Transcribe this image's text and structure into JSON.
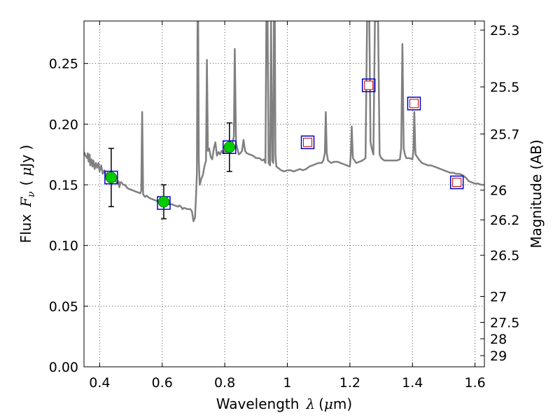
{
  "chart_data": {
    "type": "line",
    "xlabel_prefix": "Wavelength",
    "xlabel_symbol": "λ",
    "xlabel_unit_open": "(",
    "xlabel_unit_mu": "μ",
    "xlabel_unit_rest": "m)",
    "ylabel_prefix": "Flux",
    "ylabel_symbol": "F",
    "ylabel_sub": "ν",
    "ylabel_unit_open": "(",
    "ylabel_unit_mu": "μ",
    "ylabel_unit_rest": "Jy )",
    "y2label": "Magnitude (AB)",
    "xlim": [
      0.35,
      1.63
    ],
    "ylim": [
      0.0,
      0.285
    ],
    "x_ticks": [
      0.4,
      0.6,
      0.8,
      1.0,
      1.2,
      1.4,
      1.6
    ],
    "x_tick_labels": [
      "0.4",
      "0.6",
      "0.8",
      "1",
      "1.2",
      "1.4",
      "1.6"
    ],
    "y_ticks": [
      0.0,
      0.05,
      0.1,
      0.15,
      0.2,
      0.25
    ],
    "y_tick_labels": [
      "0.00",
      "0.05",
      "0.10",
      "0.15",
      "0.20",
      "0.25"
    ],
    "mag_ticks": [
      {
        "label": "25.3",
        "flux": 0.2775
      },
      {
        "label": "25.5",
        "flux": 0.2307
      },
      {
        "label": "25.7",
        "flux": 0.1919
      },
      {
        "label": "26",
        "flux": 0.1456
      },
      {
        "label": "26.2",
        "flux": 0.1211
      },
      {
        "label": "26.5",
        "flux": 0.0919
      },
      {
        "label": "27",
        "flux": 0.058
      },
      {
        "label": "27.5",
        "flux": 0.0366
      },
      {
        "label": "28",
        "flux": 0.0231
      },
      {
        "label": "29",
        "flux": 0.0092
      }
    ],
    "grid": true,
    "series": [
      {
        "name": "model-spectrum",
        "color": "#808080",
        "points": [
          [
            0.35,
            0.177
          ],
          [
            0.355,
            0.174
          ],
          [
            0.36,
            0.172
          ],
          [
            0.362,
            0.176
          ],
          [
            0.365,
            0.169
          ],
          [
            0.368,
            0.175
          ],
          [
            0.37,
            0.166
          ],
          [
            0.374,
            0.171
          ],
          [
            0.377,
            0.165
          ],
          [
            0.38,
            0.17
          ],
          [
            0.384,
            0.163
          ],
          [
            0.388,
            0.168
          ],
          [
            0.392,
            0.164
          ],
          [
            0.396,
            0.168
          ],
          [
            0.4,
            0.161
          ],
          [
            0.405,
            0.166
          ],
          [
            0.41,
            0.159
          ],
          [
            0.415,
            0.162
          ],
          [
            0.42,
            0.157
          ],
          [
            0.425,
            0.16
          ],
          [
            0.43,
            0.156
          ],
          [
            0.435,
            0.155
          ],
          [
            0.44,
            0.158
          ],
          [
            0.445,
            0.154
          ],
          [
            0.45,
            0.155
          ],
          [
            0.455,
            0.151
          ],
          [
            0.46,
            0.153
          ],
          [
            0.463,
            0.148
          ],
          [
            0.466,
            0.152
          ],
          [
            0.47,
            0.152
          ],
          [
            0.475,
            0.15
          ],
          [
            0.48,
            0.15
          ],
          [
            0.49,
            0.147
          ],
          [
            0.5,
            0.146
          ],
          [
            0.51,
            0.145
          ],
          [
            0.52,
            0.144
          ],
          [
            0.53,
            0.143
          ],
          [
            0.533,
            0.145
          ],
          [
            0.536,
            0.21
          ],
          [
            0.539,
            0.142
          ],
          [
            0.545,
            0.14
          ],
          [
            0.55,
            0.141
          ],
          [
            0.56,
            0.139
          ],
          [
            0.57,
            0.138
          ],
          [
            0.58,
            0.137
          ],
          [
            0.59,
            0.136
          ],
          [
            0.6,
            0.136
          ],
          [
            0.61,
            0.135
          ],
          [
            0.62,
            0.134
          ],
          [
            0.63,
            0.134
          ],
          [
            0.64,
            0.133
          ],
          [
            0.65,
            0.132
          ],
          [
            0.655,
            0.133
          ],
          [
            0.66,
            0.132
          ],
          [
            0.665,
            0.13
          ],
          [
            0.67,
            0.131
          ],
          [
            0.68,
            0.13
          ],
          [
            0.69,
            0.13
          ],
          [
            0.695,
            0.128
          ],
          [
            0.7,
            0.12
          ],
          [
            0.705,
            0.123
          ],
          [
            0.708,
            0.14
          ],
          [
            0.711,
            0.16
          ],
          [
            0.713,
            0.285
          ],
          [
            0.715,
            0.285
          ],
          [
            0.717,
            0.17
          ],
          [
            0.72,
            0.15
          ],
          [
            0.725,
            0.155
          ],
          [
            0.73,
            0.158
          ],
          [
            0.735,
            0.165
          ],
          [
            0.74,
            0.17
          ],
          [
            0.743,
            0.253
          ],
          [
            0.746,
            0.178
          ],
          [
            0.75,
            0.18
          ],
          [
            0.755,
            0.173
          ],
          [
            0.76,
            0.171
          ],
          [
            0.765,
            0.18
          ],
          [
            0.77,
            0.185
          ],
          [
            0.775,
            0.174
          ],
          [
            0.78,
            0.177
          ],
          [
            0.785,
            0.175
          ],
          [
            0.79,
            0.178
          ],
          [
            0.795,
            0.176
          ],
          [
            0.8,
            0.178
          ],
          [
            0.805,
            0.177
          ],
          [
            0.81,
            0.178
          ],
          [
            0.815,
            0.177
          ],
          [
            0.82,
            0.18
          ],
          [
            0.825,
            0.185
          ],
          [
            0.829,
            0.19
          ],
          [
            0.832,
            0.262
          ],
          [
            0.836,
            0.184
          ],
          [
            0.84,
            0.18
          ],
          [
            0.845,
            0.175
          ],
          [
            0.85,
            0.176
          ],
          [
            0.855,
            0.178
          ],
          [
            0.86,
            0.187
          ],
          [
            0.865,
            0.178
          ],
          [
            0.87,
            0.176
          ],
          [
            0.88,
            0.175
          ],
          [
            0.89,
            0.174
          ],
          [
            0.9,
            0.172
          ],
          [
            0.91,
            0.172
          ],
          [
            0.92,
            0.17
          ],
          [
            0.925,
            0.171
          ],
          [
            0.93,
            0.168
          ],
          [
            0.933,
            0.285
          ],
          [
            0.937,
            0.285
          ],
          [
            0.94,
            0.168
          ],
          [
            0.945,
            0.166
          ],
          [
            0.948,
            0.285
          ],
          [
            0.952,
            0.17
          ],
          [
            0.955,
            0.168
          ],
          [
            0.957,
            0.285
          ],
          [
            0.96,
            0.285
          ],
          [
            0.962,
            0.175
          ],
          [
            0.965,
            0.165
          ],
          [
            0.97,
            0.164
          ],
          [
            0.98,
            0.162
          ],
          [
            0.99,
            0.161
          ],
          [
            1.0,
            0.162
          ],
          [
            1.01,
            0.162
          ],
          [
            1.02,
            0.161
          ],
          [
            1.03,
            0.162
          ],
          [
            1.04,
            0.163
          ],
          [
            1.05,
            0.162
          ],
          [
            1.06,
            0.163
          ],
          [
            1.07,
            0.165
          ],
          [
            1.08,
            0.166
          ],
          [
            1.09,
            0.167
          ],
          [
            1.1,
            0.168
          ],
          [
            1.11,
            0.168
          ],
          [
            1.115,
            0.17
          ],
          [
            1.12,
            0.176
          ],
          [
            1.123,
            0.21
          ],
          [
            1.126,
            0.176
          ],
          [
            1.13,
            0.17
          ],
          [
            1.14,
            0.168
          ],
          [
            1.15,
            0.169
          ],
          [
            1.16,
            0.169
          ],
          [
            1.17,
            0.168
          ],
          [
            1.18,
            0.167
          ],
          [
            1.19,
            0.166
          ],
          [
            1.2,
            0.165
          ],
          [
            1.203,
            0.175
          ],
          [
            1.206,
            0.198
          ],
          [
            1.209,
            0.175
          ],
          [
            1.21,
            0.172
          ],
          [
            1.22,
            0.168
          ],
          [
            1.23,
            0.169
          ],
          [
            1.24,
            0.17
          ],
          [
            1.25,
            0.172
          ],
          [
            1.255,
            0.285
          ],
          [
            1.262,
            0.285
          ],
          [
            1.266,
            0.185
          ],
          [
            1.27,
            0.18
          ],
          [
            1.275,
            0.175
          ],
          [
            1.28,
            0.285
          ],
          [
            1.29,
            0.285
          ],
          [
            1.295,
            0.175
          ],
          [
            1.3,
            0.172
          ],
          [
            1.31,
            0.17
          ],
          [
            1.32,
            0.17
          ],
          [
            1.33,
            0.17
          ],
          [
            1.34,
            0.17
          ],
          [
            1.35,
            0.17
          ],
          [
            1.36,
            0.171
          ],
          [
            1.364,
            0.18
          ],
          [
            1.368,
            0.266
          ],
          [
            1.372,
            0.18
          ],
          [
            1.376,
            0.175
          ],
          [
            1.38,
            0.172
          ],
          [
            1.39,
            0.172
          ],
          [
            1.4,
            0.171
          ],
          [
            1.403,
            0.178
          ],
          [
            1.406,
            0.21
          ],
          [
            1.409,
            0.18
          ],
          [
            1.41,
            0.175
          ],
          [
            1.42,
            0.171
          ],
          [
            1.43,
            0.168
          ],
          [
            1.44,
            0.167
          ],
          [
            1.45,
            0.166
          ],
          [
            1.46,
            0.166
          ],
          [
            1.47,
            0.165
          ],
          [
            1.48,
            0.164
          ],
          [
            1.49,
            0.163
          ],
          [
            1.5,
            0.162
          ],
          [
            1.51,
            0.161
          ],
          [
            1.52,
            0.16
          ],
          [
            1.53,
            0.16
          ],
          [
            1.54,
            0.159
          ],
          [
            1.55,
            0.159
          ],
          [
            1.56,
            0.158
          ],
          [
            1.57,
            0.156
          ],
          [
            1.58,
            0.153
          ],
          [
            1.59,
            0.152
          ],
          [
            1.6,
            0.151
          ],
          [
            1.61,
            0.151
          ],
          [
            1.62,
            0.15
          ],
          [
            1.63,
            0.15
          ]
        ]
      }
    ],
    "model_points": [
      {
        "x": 0.437,
        "y": 0.156
      },
      {
        "x": 0.605,
        "y": 0.135
      },
      {
        "x": 0.815,
        "y": 0.181
      },
      {
        "x": 1.065,
        "y": 0.185
      },
      {
        "x": 1.26,
        "y": 0.232
      },
      {
        "x": 1.405,
        "y": 0.217
      },
      {
        "x": 1.542,
        "y": 0.152
      }
    ],
    "observed_points": [
      {
        "x": 0.437,
        "y": 0.156,
        "yerr": 0.024
      },
      {
        "x": 0.605,
        "y": 0.136,
        "yerr": 0.014
      },
      {
        "x": 0.815,
        "y": 0.181,
        "yerr": 0.02
      }
    ],
    "upper_limit_points": [
      {
        "x": 1.065,
        "y": 0.185
      },
      {
        "x": 1.26,
        "y": 0.232
      },
      {
        "x": 1.405,
        "y": 0.217
      },
      {
        "x": 1.542,
        "y": 0.152
      }
    ],
    "colors": {
      "spectrum": "#808080",
      "model_square": "#0000cc",
      "observed": "#00cc00",
      "upper_limit": "#cc0000",
      "grid": "#555555",
      "errorbar": "#000000"
    }
  }
}
